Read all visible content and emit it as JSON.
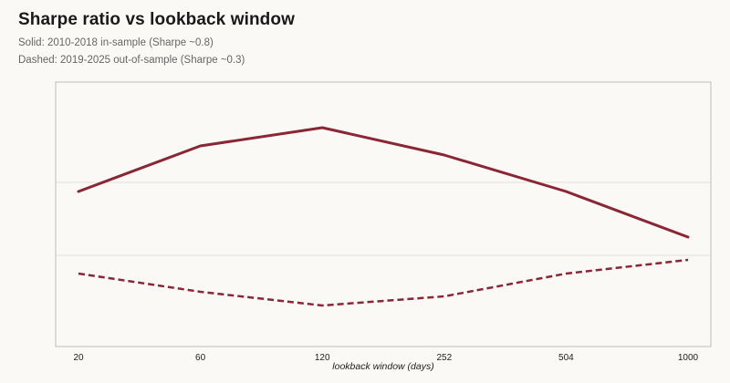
{
  "title": "Sharpe ratio vs lookback window",
  "subtitle_solid": "Solid: 2010-2018 in-sample (Sharpe ~0.8)",
  "subtitle_dashed": "Dashed: 2019-2025 out-of-sample (Sharpe ~0.3)",
  "colors": {
    "series": "#8b2636",
    "axis": "#bdbdb8",
    "grid": "#e2e1dc",
    "background": "#faf9f5"
  },
  "chart_data": {
    "type": "line",
    "x": [
      "20",
      "60",
      "120",
      "252",
      "504",
      "1000"
    ],
    "xlabel": "lookback window (days)",
    "ylabel": "",
    "ylim": [
      0,
      2.9
    ],
    "grid": "horizontal",
    "series": [
      {
        "name": "2010-2018 in-sample",
        "style": "solid",
        "values": [
          1.7,
          2.2,
          2.4,
          2.1,
          1.7,
          1.2
        ]
      },
      {
        "name": "2019-2025 out-of-sample",
        "style": "dashed",
        "values": [
          0.8,
          0.6,
          0.45,
          0.55,
          0.8,
          0.95
        ]
      }
    ]
  }
}
